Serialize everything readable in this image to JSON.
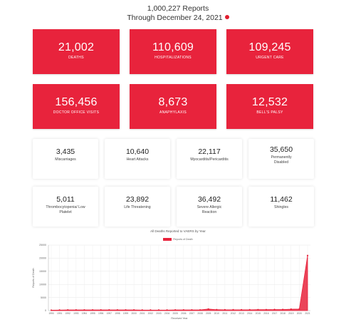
{
  "header": {
    "line1": "1,000,227 Reports",
    "line2": "Through December 24, 2021"
  },
  "red_cards": [
    {
      "value": "21,002",
      "label": "DEATHS"
    },
    {
      "value": "110,609",
      "label": "HOSPITALIZATIONS"
    },
    {
      "value": "109,245",
      "label": "URGENT CARE"
    },
    {
      "value": "156,456",
      "label": "DOCTOR OFFICE VISITS"
    },
    {
      "value": "8,673",
      "label": "ANAPHYLAXIS"
    },
    {
      "value": "12,532",
      "label": "BELL'S PALSY"
    }
  ],
  "white_cards": [
    {
      "value": "3,435",
      "label": "Miscarriages"
    },
    {
      "value": "10,640",
      "label": "Heart Attacks"
    },
    {
      "value": "22,117",
      "label": "Myocarditis/Pericarditis"
    },
    {
      "value": "35,650",
      "label": "Permanently Disabled"
    },
    {
      "value": "5,011",
      "label": "Thrombocytopenia/ Low Platelet"
    },
    {
      "value": "23,892",
      "label": "Life Threatening"
    },
    {
      "value": "36,492",
      "label": "Severe Allergic Reaction"
    },
    {
      "value": "11,462",
      "label": "Shingles"
    }
  ],
  "colors": {
    "accent": "#e8233c",
    "info_dot": "#e11d2f"
  },
  "chart_data": {
    "type": "area",
    "title": "All Deaths Reported to VAERS by Year",
    "legend": [
      "Reports of Death"
    ],
    "legend_position": "top-center",
    "xlabel": "Received Year",
    "ylabel": "Reports of Death",
    "ylim": [
      0,
      25000
    ],
    "yticks": [
      0,
      5000,
      10000,
      15000,
      20000,
      25000
    ],
    "grid": true,
    "x": [
      1990,
      1991,
      1992,
      1993,
      1994,
      1995,
      1996,
      1997,
      1998,
      1999,
      2000,
      2001,
      2002,
      2003,
      2004,
      2005,
      2006,
      2007,
      2008,
      2009,
      2010,
      2011,
      2012,
      2013,
      2014,
      2015,
      2016,
      2017,
      2018,
      2019,
      2020,
      2021
    ],
    "series": [
      {
        "name": "Reports of Death",
        "values": [
          150,
          200,
          250,
          250,
          250,
          250,
          250,
          250,
          250,
          250,
          250,
          200,
          200,
          200,
          200,
          250,
          250,
          250,
          250,
          600,
          350,
          300,
          300,
          300,
          300,
          350,
          350,
          400,
          400,
          550,
          600,
          21002
        ]
      }
    ]
  }
}
